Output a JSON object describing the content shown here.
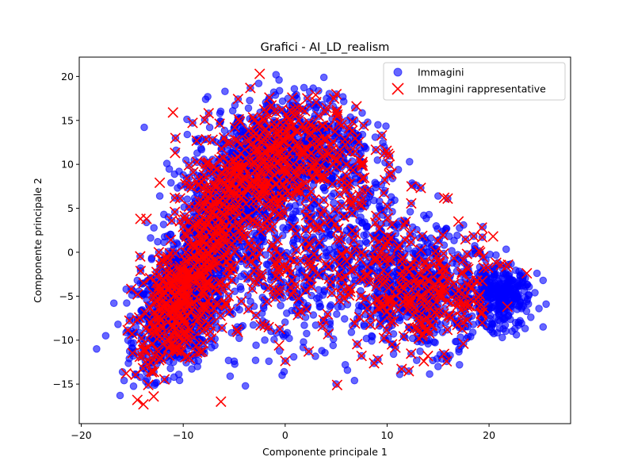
{
  "chart_data": {
    "type": "scatter",
    "title": "Grafici - AI_LD_realism",
    "xlabel": "Componente principale 1",
    "ylabel": "Componente principale 2",
    "xlim": [
      -20.2,
      28.0
    ],
    "ylim": [
      -19.5,
      22.2
    ],
    "xticks": [
      -20,
      -10,
      0,
      10,
      20
    ],
    "yticks": [
      -15,
      -10,
      -5,
      0,
      5,
      10,
      15,
      20
    ],
    "xtick_labels": [
      "−20",
      "−10",
      "0",
      "10",
      "20"
    ],
    "ytick_labels": [
      "−15",
      "−10",
      "−5",
      "0",
      "5",
      "10",
      "15",
      "20"
    ],
    "grid": false,
    "legend_position": "top-right",
    "colors": {
      "images": "#0000ff",
      "representative": "#ff0000"
    },
    "series": [
      {
        "name": "Immagini",
        "marker": "circle",
        "points": [
          [
            -18.5,
            -11.0
          ],
          [
            -17.6,
            -9.5
          ],
          [
            -16.8,
            -5.8
          ],
          [
            -16.4,
            -8.2
          ],
          [
            -16.2,
            -16.3
          ],
          [
            -15.8,
            -14.6
          ],
          [
            -15.6,
            -4.2
          ],
          [
            -15.2,
            -7.3
          ],
          [
            -14.9,
            -11.8
          ],
          [
            -14.5,
            -3.2
          ],
          [
            -14.2,
            -1.8
          ],
          [
            -13.9,
            -13.2
          ],
          [
            -13.6,
            3.4
          ],
          [
            -13.4,
            -6.0
          ],
          [
            -13.1,
            -0.8
          ],
          [
            -12.8,
            -15.1
          ],
          [
            -12.5,
            1.2
          ],
          [
            -12.3,
            6.4
          ],
          [
            -12.1,
            -8.7
          ],
          [
            -11.9,
            4.3
          ],
          [
            -11.6,
            10.1
          ],
          [
            -11.4,
            -12.4
          ],
          [
            -11.2,
            7.9
          ],
          [
            -10.9,
            -14.2
          ],
          [
            -10.7,
            11.6
          ],
          [
            -10.5,
            -2.5
          ],
          [
            -10.2,
            -11.1
          ],
          [
            -10.0,
            8.8
          ],
          [
            -9.8,
            -6.4
          ],
          [
            -9.6,
            13.4
          ],
          [
            -9.3,
            2.8
          ],
          [
            -9.1,
            -9.3
          ],
          [
            -8.8,
            12.8
          ],
          [
            -8.6,
            -13.0
          ],
          [
            -8.3,
            5.7
          ],
          [
            -8.1,
            -4.9
          ],
          [
            -7.8,
            17.4
          ],
          [
            -7.6,
            17.7
          ],
          [
            -7.4,
            14.2
          ],
          [
            -7.1,
            -0.9
          ],
          [
            -6.9,
            -10.6
          ],
          [
            -6.6,
            9.5
          ],
          [
            -6.4,
            15.8
          ],
          [
            -6.1,
            -6.7
          ],
          [
            -5.9,
            18.3
          ],
          [
            -5.7,
            3.6
          ],
          [
            -5.4,
            -14.1
          ],
          [
            -5.2,
            11.3
          ],
          [
            -4.9,
            -3.2
          ],
          [
            -4.7,
            -8.5
          ],
          [
            -4.4,
            13.7
          ],
          [
            -4.2,
            6.8
          ],
          [
            -3.9,
            -15.2
          ],
          [
            -3.6,
            16.4
          ],
          [
            -3.4,
            -5.6
          ],
          [
            -3.1,
            1.4
          ],
          [
            -2.9,
            -12.3
          ],
          [
            -2.6,
            19.2
          ],
          [
            -2.4,
            10.4
          ],
          [
            -2.2,
            -7.8
          ],
          [
            -1.9,
            4.2
          ],
          [
            -1.6,
            -12.4
          ],
          [
            -1.4,
            14.5
          ],
          [
            -1.1,
            -2.6
          ],
          [
            -0.9,
            20.2
          ],
          [
            -0.6,
            19.6
          ],
          [
            -0.4,
            8.3
          ],
          [
            -0.1,
            -13.6
          ],
          [
            0.2,
            15.6
          ],
          [
            0.4,
            -9.8
          ],
          [
            0.7,
            -5.1
          ],
          [
            0.9,
            18.6
          ],
          [
            1.2,
            2.7
          ],
          [
            1.5,
            12.4
          ],
          [
            1.8,
            -10.2
          ],
          [
            2.1,
            -3.8
          ],
          [
            2.4,
            16.9
          ],
          [
            2.7,
            6.2
          ],
          [
            3.0,
            -8.3
          ],
          [
            3.3,
            0.8
          ],
          [
            3.6,
            -11.2
          ],
          [
            3.8,
            19.9
          ],
          [
            4.1,
            10.8
          ],
          [
            4.4,
            -6.2
          ],
          [
            4.7,
            -10.6
          ],
          [
            5.0,
            3.9
          ],
          [
            5.3,
            15.3
          ],
          [
            5.6,
            -1.6
          ],
          [
            5.9,
            -12.8
          ],
          [
            6.2,
            8.1
          ],
          [
            6.5,
            -9.1
          ],
          [
            6.8,
            -14.6
          ],
          [
            7.1,
            12.6
          ],
          [
            7.4,
            -4.4
          ],
          [
            7.8,
            5.6
          ],
          [
            8.1,
            14.8
          ],
          [
            8.4,
            -7.5
          ],
          [
            8.8,
            1.9
          ],
          [
            9.1,
            14.5
          ],
          [
            9.4,
            -3.1
          ],
          [
            9.8,
            10.2
          ],
          [
            10.1,
            -9.8
          ],
          [
            10.4,
            6.3
          ],
          [
            10.8,
            -0.4
          ],
          [
            11.1,
            9.4
          ],
          [
            11.5,
            -6.4
          ],
          [
            11.8,
            3.3
          ],
          [
            12.2,
            10.3
          ],
          [
            12.5,
            -2.3
          ],
          [
            12.9,
            7.6
          ],
          [
            13.2,
            -8.6
          ],
          [
            13.6,
            4.2
          ],
          [
            13.9,
            -4.8
          ],
          [
            14.3,
            1.6
          ],
          [
            14.6,
            -10.2
          ],
          [
            15.0,
            6.4
          ],
          [
            15.3,
            -6.8
          ],
          [
            15.7,
            2.5
          ],
          [
            16.0,
            -12.1
          ],
          [
            16.4,
            -1.2
          ],
          [
            16.8,
            -7.9
          ],
          [
            17.1,
            -12.8
          ],
          [
            17.5,
            3.1
          ],
          [
            17.9,
            -4.5
          ],
          [
            18.2,
            -9.6
          ],
          [
            18.6,
            0.4
          ],
          [
            19.0,
            -6.3
          ],
          [
            19.4,
            2.9
          ],
          [
            19.7,
            -3.2
          ],
          [
            20.1,
            -8.8
          ],
          [
            20.5,
            -1.9
          ],
          [
            20.9,
            -5.4
          ],
          [
            21.3,
            -9.7
          ],
          [
            21.7,
            -2.6
          ],
          [
            22.1,
            -6.8
          ],
          [
            22.5,
            -4.1
          ],
          [
            22.9,
            -8.3
          ],
          [
            23.3,
            -3.0
          ],
          [
            23.7,
            -5.6
          ],
          [
            24.1,
            -7.4
          ],
          [
            24.5,
            -4.6
          ],
          [
            24.9,
            -6.4
          ],
          [
            25.3,
            -3.2
          ],
          [
            25.6,
            -5.9
          ],
          [
            25.3,
            -8.5
          ],
          [
            24.7,
            -2.4
          ],
          [
            21.2,
            -4.4
          ],
          [
            21.8,
            -5.2
          ],
          [
            22.4,
            -4.8
          ],
          [
            20.6,
            -6.1
          ],
          [
            23.0,
            -6.0
          ],
          [
            21.5,
            -3.6
          ],
          [
            -5.0,
            -12.4
          ],
          [
            -0.3,
            -14.0
          ],
          [
            5.0,
            -15.0
          ],
          [
            2.0,
            -7.4
          ],
          [
            -2.0,
            -10.0
          ],
          [
            12.9,
            -12.3
          ],
          [
            15.0,
            -13.0
          ],
          [
            8.8,
            -1.1
          ]
        ]
      },
      {
        "name": "Immagini rappresentative",
        "marker": "x",
        "points": [
          [
            -14.5,
            -16.8
          ],
          [
            -13.9,
            -17.3
          ],
          [
            -12.9,
            -16.4
          ],
          [
            -6.3,
            -17.0
          ],
          [
            5.1,
            -15.1
          ],
          [
            -13.7,
            -12.5
          ],
          [
            -15.6,
            -13.8
          ],
          [
            -14.2,
            3.8
          ],
          [
            -13.6,
            3.8
          ],
          [
            -12.3,
            7.9
          ],
          [
            -11.0,
            15.9
          ],
          [
            -10.8,
            11.3
          ],
          [
            -2.5,
            20.3
          ],
          [
            0.7,
            17.6
          ],
          [
            3.0,
            17.9
          ],
          [
            7.0,
            16.6
          ],
          [
            10.1,
            11.2
          ],
          [
            12.4,
            7.5
          ],
          [
            15.6,
            6.2
          ],
          [
            19.3,
            2.8
          ],
          [
            20.4,
            1.8
          ],
          [
            20.7,
            -1.2
          ],
          [
            21.8,
            -6.2
          ],
          [
            23.7,
            -2.4
          ],
          [
            17.0,
            3.5
          ],
          [
            -0.6,
            -10.6
          ],
          [
            13.6,
            -12.4
          ],
          [
            14.0,
            -11.8
          ],
          [
            -13.5,
            -10.8
          ],
          [
            -12.7,
            -9.2
          ]
        ]
      }
    ]
  },
  "legend": {
    "items": [
      {
        "label": "Immagini"
      },
      {
        "label": "Immagini rappresentative"
      }
    ]
  }
}
